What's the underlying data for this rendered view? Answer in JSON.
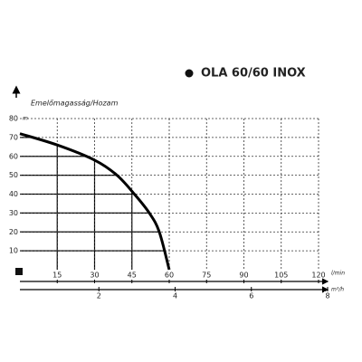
{
  "chart_data": {
    "type": "line",
    "title": "OLA 60/60 INOX",
    "ylabel": "Emelőmagasság/Hozam",
    "y_unit": "m",
    "x_unit": "l/min",
    "x2_unit": "m³/h",
    "x": [
      0,
      15,
      30,
      39,
      46,
      52,
      56,
      60
    ],
    "series": [
      {
        "name": "OLA 60/60 INOX",
        "color": "#000000",
        "values": [
          72,
          66,
          58,
          50,
          40,
          30,
          20,
          0
        ]
      }
    ],
    "xlim": [
      0,
      120
    ],
    "xticks": [
      15,
      30,
      45,
      60,
      75,
      90,
      105,
      120
    ],
    "ylim": [
      0,
      80
    ],
    "yticks": [
      10,
      20,
      30,
      40,
      50,
      60,
      70,
      80
    ],
    "x2lim": [
      0,
      8
    ],
    "x2ticks": [
      2,
      4,
      6,
      8
    ],
    "grid": true
  }
}
